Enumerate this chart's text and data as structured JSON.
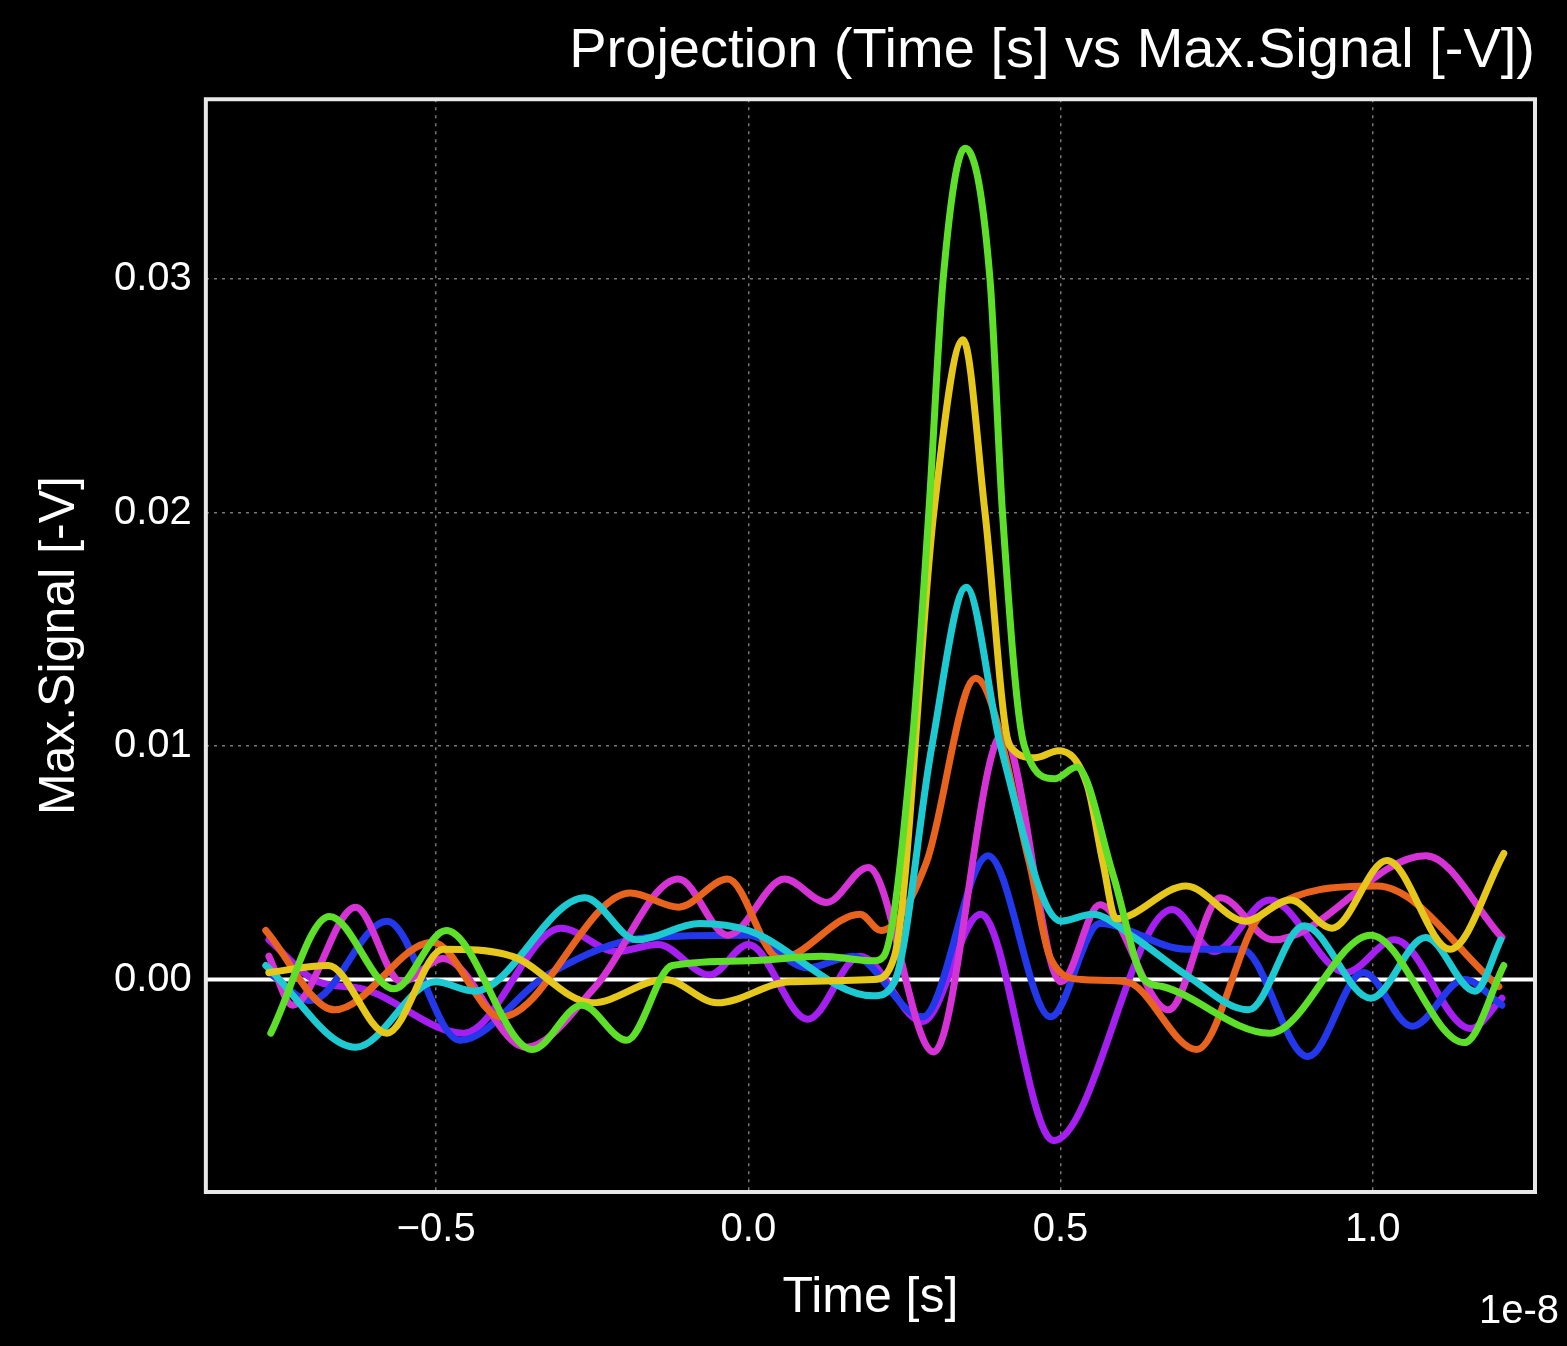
{
  "chart_data": {
    "type": "line",
    "title": "Projection (Time [s] vs Max.Signal [-V])",
    "xlabel": "Time [s]",
    "ylabel": "Max.Signal [-V]",
    "annotations": [
      "1e-8"
    ],
    "xlim": [
      -0.869,
      1.26
    ],
    "ylim": [
      -0.0091,
      0.0377
    ],
    "xticks": [
      {
        "value": -0.5,
        "label": "−0.5"
      },
      {
        "value": 0,
        "label": "0.0"
      },
      {
        "value": 0.5,
        "label": "0.5"
      },
      {
        "value": 1,
        "label": "1.0"
      }
    ],
    "yticks": [
      {
        "value": 0,
        "label": "0.00"
      },
      {
        "value": 0.01,
        "label": "0.01"
      },
      {
        "value": 0.02,
        "label": "0.02"
      },
      {
        "value": 0.03,
        "label": "0.03"
      }
    ],
    "grid": true,
    "legend": false,
    "marker": "none",
    "line_style": "solid",
    "ref_lines": [
      {
        "axis": "y",
        "value": 0,
        "color": "#ffffff"
      }
    ],
    "series": [
      {
        "color": "#5ee02a",
        "x": [
          -0.765,
          -0.671,
          -0.568,
          -0.484,
          -0.346,
          -0.267,
          -0.195,
          -0.122,
          0,
          0.117,
          0.2,
          0.217,
          0.262,
          0.289,
          0.312,
          0.347,
          0.387,
          0.407,
          0.442,
          0.491,
          0.526,
          0.584,
          0.634,
          0.663,
          0.835,
          0.997,
          1.147,
          1.21
        ],
        "values": [
          -0.0023,
          0.0027,
          -0.0004,
          0.0021,
          -0.003,
          -0.0011,
          -0.0026,
          0.0006,
          0.0008,
          0.001,
          0.0008,
          0.001,
          0.01,
          0.02,
          0.03,
          0.0356,
          0.03,
          0.02,
          0.01,
          0.0086,
          0.0091,
          0.0045,
          0,
          -0.0003,
          -0.0023,
          0.0019,
          -0.0027,
          0.0006
        ]
      },
      {
        "color": "#e6c81c",
        "x": [
          -0.768,
          -0.673,
          -0.579,
          -0.489,
          -0.379,
          -0.25,
          -0.134,
          -0.05,
          0.067,
          0.2,
          0.234,
          0.297,
          0.344,
          0.379,
          0.419,
          0.459,
          0.497,
          0.543,
          0.568,
          0.589,
          0.701,
          0.796,
          0.868,
          0.935,
          1.023,
          1.124,
          1.21
        ],
        "values": [
          0.0003,
          0.0006,
          -0.0023,
          0.0013,
          0.001,
          -0.001,
          0,
          -0.001,
          -0.0001,
          0,
          0.001,
          0.02,
          0.0274,
          0.02,
          0.01,
          0.0095,
          0.0098,
          0.0083,
          0.005,
          0.0026,
          0.004,
          0.0025,
          0.0034,
          0.0022,
          0.0051,
          0.0013,
          0.0054
        ]
      },
      {
        "color": "#1ecad2",
        "x": [
          -0.773,
          -0.629,
          -0.501,
          -0.439,
          -0.262,
          -0.179,
          -0.078,
          0,
          0.2,
          0.234,
          0.294,
          0.349,
          0.404,
          0.501,
          0.551,
          0.618,
          0.701,
          0.801,
          0.89,
          0.997,
          1.085,
          1.164,
          1.205
        ],
        "values": [
          0.0006,
          -0.0029,
          -0.0001,
          -0.0005,
          0.0035,
          0.0017,
          0.0024,
          0.0021,
          -0.0007,
          -0.0001,
          0.01,
          0.0168,
          0.01,
          0.0025,
          0.0028,
          0.0018,
          0.0002,
          -0.0013,
          0.0023,
          -0.0008,
          0.0018,
          -0.0005,
          0.0017
        ]
      },
      {
        "color": "#e8641e",
        "x": [
          -0.773,
          -0.663,
          -0.506,
          -0.396,
          -0.189,
          -0.112,
          -0.033,
          0.05,
          0.179,
          0.212,
          0.285,
          0.364,
          0.45,
          0.484,
          0.534,
          0.606,
          0.718,
          0.823,
          1.007,
          1.202
        ],
        "values": [
          0.0021,
          -0.0013,
          0.0016,
          -0.0016,
          0.0037,
          0.0031,
          0.0043,
          0.0009,
          0.0028,
          0.0021,
          0.005,
          0.0129,
          0.005,
          0.0009,
          0,
          -0.0001,
          -0.003,
          0.0028,
          0.004,
          -0.0003
        ]
      },
      {
        "color": "#d633d6",
        "x": [
          -0.768,
          -0.73,
          -0.629,
          -0.556,
          -0.489,
          -0.356,
          -0.245,
          -0.112,
          -0.033,
          0.058,
          0.125,
          0.192,
          0.297,
          0.407,
          0.501,
          0.563,
          0.673,
          0.756,
          0.84,
          1.085,
          1.207
        ],
        "values": [
          0.001,
          -0.0011,
          0.0031,
          -0.0001,
          0.0009,
          -0.0029,
          -0.0003,
          0.0043,
          0.0019,
          0.0043,
          0.0033,
          0.0048,
          -0.0031,
          0.0105,
          -0.0001,
          0.0032,
          -0.0013,
          0.0035,
          0.0017,
          0.0053,
          0.0018
        ]
      },
      {
        "color": "#2238ea",
        "x": [
          -0.768,
          -0.701,
          -0.579,
          -0.462,
          -0.322,
          -0.162,
          0,
          0.095,
          0.167,
          0.279,
          0.384,
          0.484,
          0.563,
          0.701,
          0.79,
          0.896,
          0.985,
          1.063,
          1.147,
          1.207
        ],
        "values": [
          0.0003,
          -0.0009,
          0.0025,
          -0.0026,
          0.0002,
          0.0018,
          0.0019,
          0.0005,
          0.001,
          -0.0016,
          0.0053,
          -0.0016,
          0.0024,
          0.0013,
          0.0013,
          -0.0033,
          0.0003,
          -0.002,
          0,
          -0.0011
        ]
      },
      {
        "color": "#a41ff0",
        "x": [
          -0.768,
          -0.689,
          -0.618,
          -0.456,
          -0.3,
          -0.212,
          -0.145,
          -0.062,
          0,
          0.095,
          0.179,
          0.279,
          0.372,
          0.489,
          0.679,
          0.746,
          0.835,
          0.957,
          1.035,
          1.157,
          1.207
        ],
        "values": [
          0.0017,
          -0.0001,
          -0.0004,
          -0.0023,
          0.0022,
          0.0012,
          0.0015,
          0.0002,
          0.0015,
          -0.0017,
          0.001,
          -0.0018,
          0.0028,
          -0.0069,
          0.003,
          0.0012,
          0.0034,
          0.0003,
          0.0017,
          -0.0021,
          -0.0008
        ]
      }
    ]
  }
}
